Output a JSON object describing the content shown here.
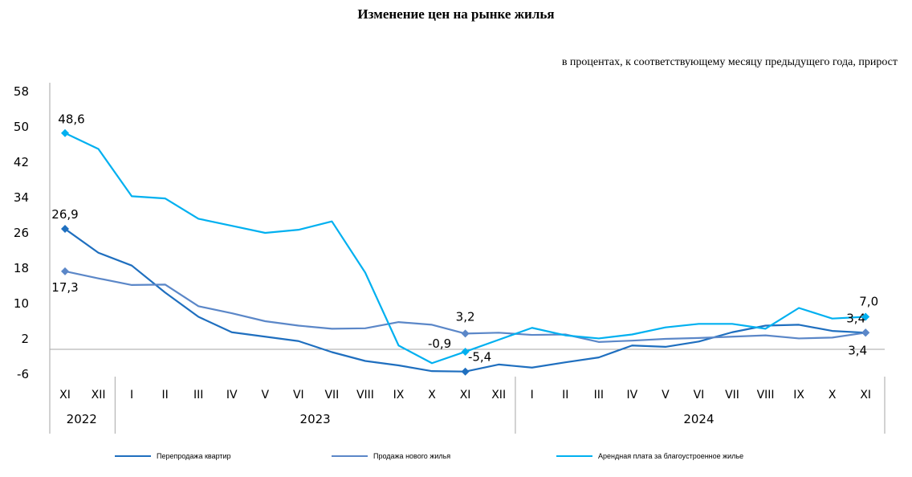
{
  "chart_data": {
    "type": "line",
    "title": "Изменение цен на рынке жилья",
    "subtitle": "в процентах, к соответствующему месяцу предыдущего года, прирост",
    "categories": [
      "XI",
      "XII",
      "I",
      "II",
      "III",
      "IV",
      "V",
      "VI",
      "VII",
      "VIII",
      "IX",
      "X",
      "XI",
      "XII",
      "I",
      "II",
      "III",
      "IV",
      "V",
      "VI",
      "VII",
      "VIII",
      "IX",
      "X",
      "XI"
    ],
    "year_groups": [
      {
        "label": "2022",
        "start": 0,
        "end": 1
      },
      {
        "label": "2023",
        "start": 2,
        "end": 13
      },
      {
        "label": "2024",
        "start": 14,
        "end": 24
      }
    ],
    "y_ticks": [
      "58",
      "50",
      "42",
      "34",
      "26",
      "18",
      "10",
      "2",
      "-6"
    ],
    "ylim": [
      -6,
      58
    ],
    "grid": false,
    "legend_position": "bottom",
    "series": [
      {
        "name": "Перепродажа квартир",
        "color": "#1f6fbf",
        "values": [
          26.9,
          21.5,
          18.6,
          12.5,
          7.0,
          3.5,
          2.5,
          1.5,
          -1.0,
          -3.0,
          -4.0,
          -5.3,
          -5.4,
          -3.8,
          -4.5,
          -3.3,
          -2.2,
          0.5,
          0.2,
          1.4,
          3.5,
          5.0,
          5.2,
          3.8,
          3.4
        ],
        "point_labels": [
          {
            "index": 0,
            "text": "26,9"
          },
          {
            "index": 12,
            "text": "-5,4"
          },
          {
            "index": 24,
            "text": "3,4"
          }
        ]
      },
      {
        "name": "Продажа нового жилья",
        "color": "#5b87c8",
        "values": [
          17.3,
          15.7,
          14.2,
          14.3,
          9.4,
          7.8,
          6.0,
          5.0,
          4.3,
          4.4,
          5.8,
          5.2,
          3.2,
          3.4,
          2.9,
          3.0,
          1.3,
          1.6,
          2.0,
          2.2,
          2.5,
          2.8,
          2.1,
          2.3,
          3.4
        ],
        "point_labels": [
          {
            "index": 0,
            "text": "17,3"
          },
          {
            "index": 12,
            "text": "3,2"
          },
          {
            "index": 24,
            "text": "3,4"
          }
        ]
      },
      {
        "name": "Арендная плата за благоустроенное жилье",
        "color": "#00b0f0",
        "values": [
          48.6,
          45.0,
          34.3,
          33.8,
          29.2,
          27.6,
          26.0,
          26.7,
          28.6,
          17.0,
          0.5,
          -3.5,
          -0.9,
          1.8,
          4.5,
          2.8,
          2.1,
          3.0,
          4.6,
          5.4,
          5.4,
          4.3,
          9.0,
          6.6,
          7.0
        ],
        "point_labels": [
          {
            "index": 0,
            "text": "48,6"
          },
          {
            "index": 12,
            "text": "-0,9"
          },
          {
            "index": 24,
            "text": "7,0"
          }
        ]
      }
    ]
  }
}
